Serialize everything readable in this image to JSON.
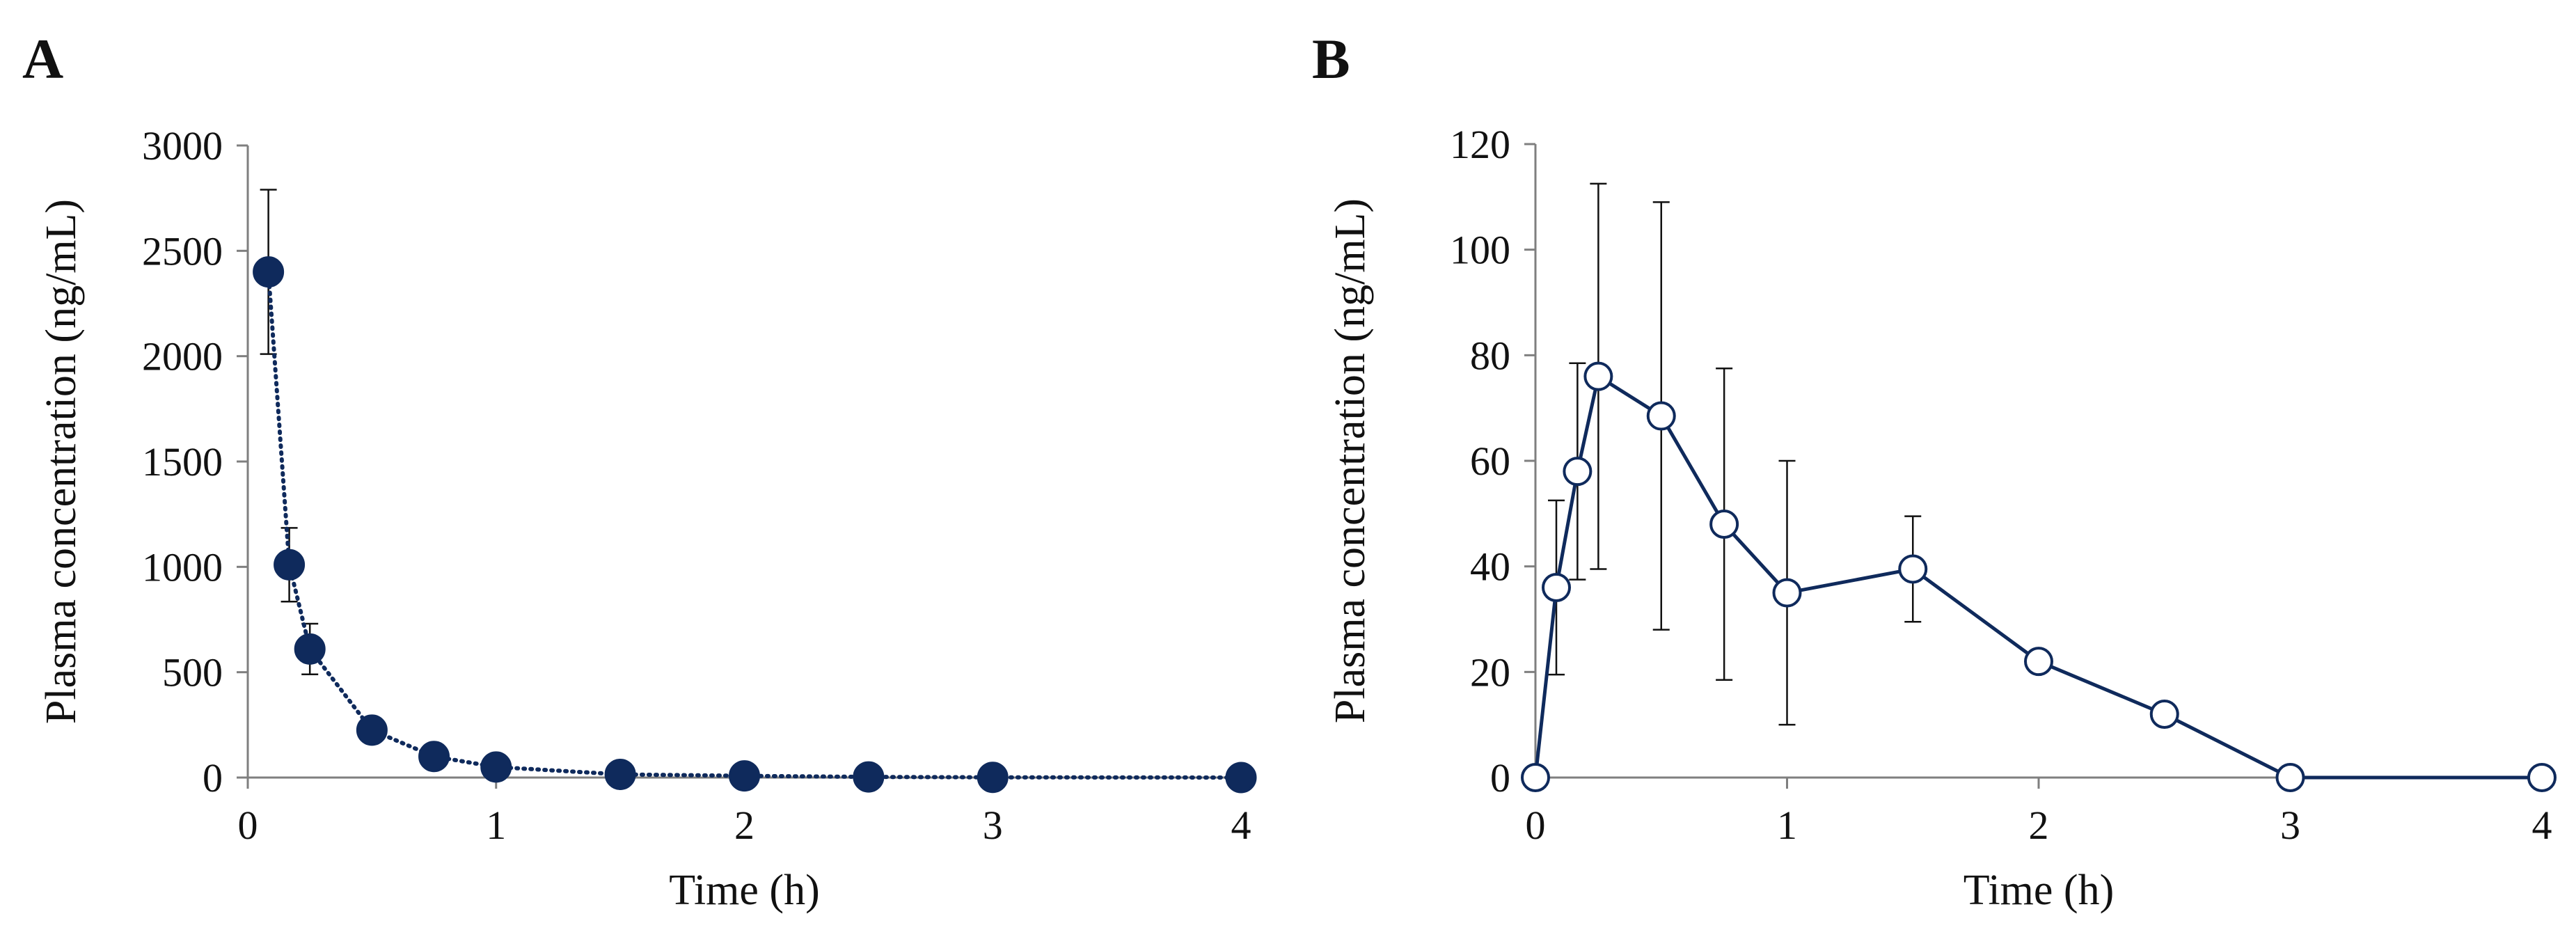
{
  "colors": {
    "series": "#0f2a5c",
    "axis": "#7f7f7f",
    "text": "#111111",
    "marker_fill_open": "#ffffff"
  },
  "chart_data": [
    {
      "panel": "A",
      "type": "line",
      "line_style": "dotted",
      "marker": "filled-circle",
      "xlabel": "Time (h)",
      "ylabel": "Plasma concentration (ng/mL)",
      "xlim": [
        0,
        4
      ],
      "ylim": [
        0,
        3000
      ],
      "xticks": [
        0,
        1,
        2,
        3,
        4
      ],
      "yticks": [
        0,
        500,
        1000,
        1500,
        2000,
        2500,
        3000
      ],
      "x": [
        0.083,
        0.167,
        0.25,
        0.5,
        0.75,
        1,
        1.5,
        2,
        2.5,
        3,
        4
      ],
      "y": [
        2400,
        1010,
        610,
        225,
        100,
        50,
        15,
        8,
        3,
        1,
        0
      ],
      "error": [
        390,
        175,
        120,
        0,
        0,
        0,
        0,
        0,
        0,
        0,
        0
      ]
    },
    {
      "panel": "B",
      "type": "line",
      "line_style": "solid",
      "marker": "open-circle",
      "xlabel": "Time (h)",
      "ylabel": "Plasma concentration (ng/mL)",
      "xlim": [
        0,
        4
      ],
      "ylim": [
        0,
        120
      ],
      "xticks": [
        0,
        1,
        2,
        3,
        4
      ],
      "yticks": [
        0,
        20,
        40,
        60,
        80,
        100,
        120
      ],
      "x": [
        0,
        0.083,
        0.167,
        0.25,
        0.5,
        0.75,
        1,
        1.5,
        2,
        2.5,
        3,
        4
      ],
      "y": [
        0,
        36,
        58,
        76,
        68.5,
        48,
        35,
        39.5,
        22,
        12,
        0,
        0
      ],
      "error": [
        0,
        16.5,
        20.5,
        36.5,
        40.5,
        29.5,
        25,
        10,
        0,
        0,
        0,
        0
      ]
    }
  ]
}
